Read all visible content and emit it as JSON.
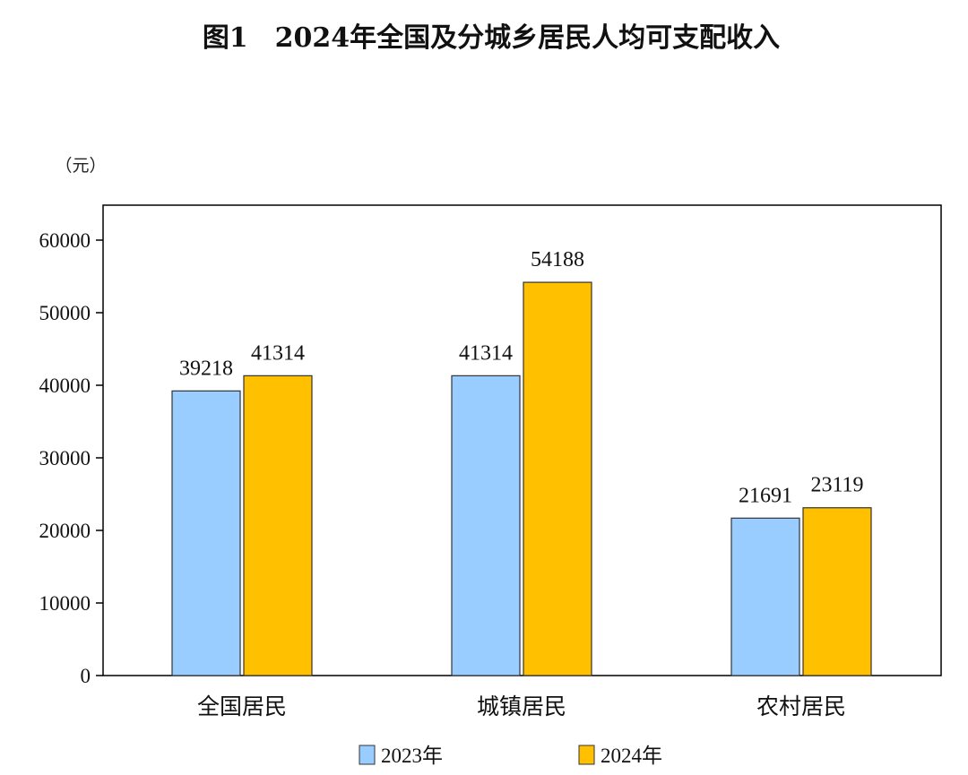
{
  "chart_data": {
    "type": "bar",
    "title": "图1　2024年全国及分城乡居民人均可支配收入",
    "unit_label": "（元）",
    "categories": [
      "全国居民",
      "城镇居民",
      "农村居民"
    ],
    "series": [
      {
        "name": "2023年",
        "values": [
          39218,
          41314,
          21691
        ],
        "color": "#99CCFF"
      },
      {
        "name": "2024年",
        "values": [
          41314,
          54188,
          23119
        ],
        "color": "#FFC000"
      }
    ],
    "ylim": [
      0,
      65000
    ],
    "yticks": [
      0,
      10000,
      20000,
      30000,
      40000,
      50000,
      60000
    ],
    "grid": false,
    "legend_position": "bottom"
  }
}
